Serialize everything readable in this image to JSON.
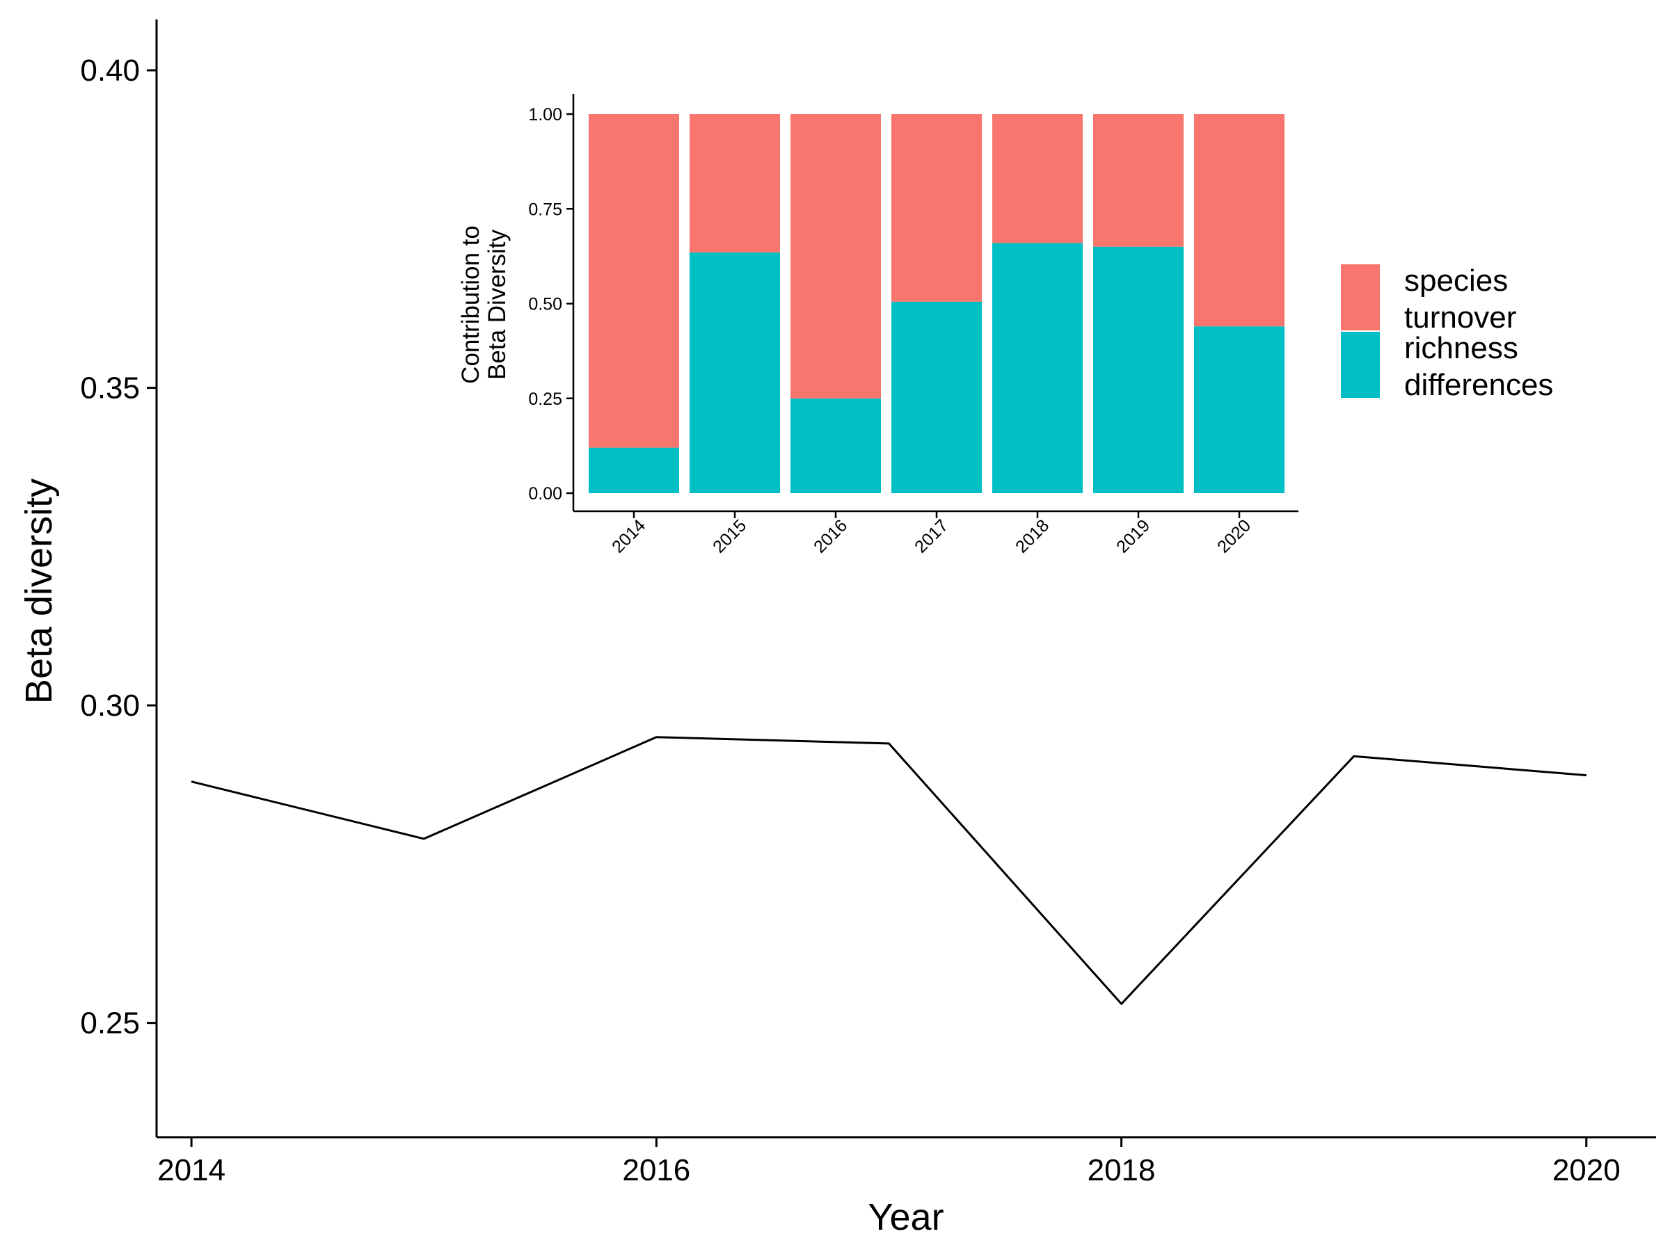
{
  "chart_data": [
    {
      "type": "line",
      "xlabel": "Year",
      "ylabel": "Beta diversity",
      "xlim": [
        2013.85,
        2020.3
      ],
      "ylim": [
        0.232,
        0.408
      ],
      "x_ticks": [
        2014,
        2016,
        2018,
        2020
      ],
      "y_ticks": [
        0.25,
        0.3,
        0.35,
        0.4
      ],
      "x_tick_labels": [
        "2014",
        "2016",
        "2018",
        "2020"
      ],
      "y_tick_labels": [
        "0.25",
        "0.30",
        "0.35",
        "0.40"
      ],
      "grid": false,
      "color": "#000000",
      "series": [
        {
          "x": [
            2014,
            2015,
            2016,
            2017,
            2018,
            2019,
            2020
          ],
          "values": [
            0.288,
            0.279,
            0.295,
            0.294,
            0.253,
            0.292,
            0.289
          ]
        }
      ]
    },
    {
      "type": "bar",
      "stacked": true,
      "ylabel_lines": [
        "Contribution to",
        "Beta Diversity"
      ],
      "xlabel": "",
      "categories": [
        "2014",
        "2015",
        "2016",
        "2017",
        "2018",
        "2019",
        "2020"
      ],
      "ylim": [
        0,
        1
      ],
      "y_ticks": [
        0,
        0.25,
        0.5,
        0.75,
        1.0
      ],
      "y_tick_labels": [
        "0.00",
        "0.25",
        "0.50",
        "0.75",
        "1.00"
      ],
      "grid": false,
      "legend_position": "right",
      "series": [
        {
          "legend_lines": [
            "richness",
            "differences"
          ],
          "color": "#00BFC4",
          "values": [
            0.12,
            0.635,
            0.25,
            0.505,
            0.66,
            0.65,
            0.44
          ]
        },
        {
          "legend_lines": [
            "species",
            "turnover"
          ],
          "color": "#F8766D",
          "values": [
            0.88,
            0.365,
            0.75,
            0.495,
            0.34,
            0.35,
            0.56
          ]
        }
      ]
    }
  ]
}
